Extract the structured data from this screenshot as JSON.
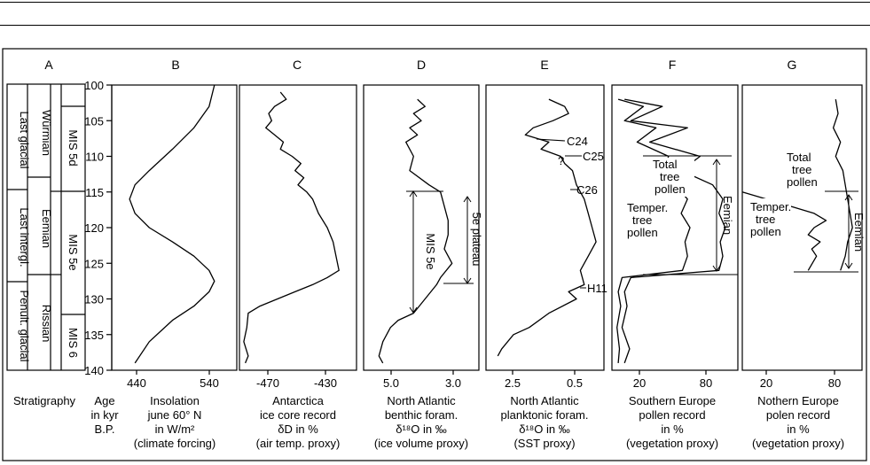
{
  "panel_letters": [
    "A",
    "B",
    "C",
    "D",
    "E",
    "F",
    "G"
  ],
  "strat": {
    "col1": [
      "Last glacial",
      "Last intergl.",
      "Penult. glacial"
    ],
    "col2": [
      "Würmian",
      "Eemian",
      "Rissian"
    ],
    "col3": [
      "MIS 5d",
      "MIS 5e",
      "MIS 6"
    ],
    "caption": "Stratigraphy"
  },
  "age_axis": {
    "ticks": [
      "100",
      "105",
      "110",
      "115",
      "120",
      "125",
      "130",
      "135",
      "140"
    ],
    "label": [
      "Age",
      "in kyr",
      "B.P."
    ]
  },
  "panel_b": {
    "xticks": [
      "440",
      "540"
    ],
    "caption": [
      "Insolation",
      "june 60° N",
      "in W/m²",
      "(climate forcing)"
    ]
  },
  "panel_c": {
    "xticks": [
      "-470",
      "-430"
    ],
    "caption": [
      "Antarctica",
      "ice core record",
      "δD in %",
      "(air temp. proxy)"
    ]
  },
  "panel_d": {
    "xticks": [
      "5.0",
      "3.0"
    ],
    "annotations": [
      "MIS 5e",
      "5e plateau"
    ],
    "caption": [
      "North Atlantic",
      "benthic foram.",
      "δ¹⁸O in ‰",
      "(ice volume proxy)"
    ]
  },
  "panel_e": {
    "xticks": [
      "2.5",
      "0.5"
    ],
    "annotations": [
      "C24",
      "C25",
      "C26",
      "H11",
      "?"
    ],
    "caption": [
      "North Atlantic",
      "planktonic foram.",
      "δ¹⁸O in ‰",
      "(SST proxy)"
    ]
  },
  "panel_f": {
    "xticks": [
      "20",
      "80"
    ],
    "annotations": [
      "Total",
      "tree",
      "pollen",
      "Temper.",
      "tree",
      "pollen",
      "Eemian"
    ],
    "caption": [
      "Southern Europe",
      "pollen record",
      "in %",
      "(vegetation proxy)"
    ]
  },
  "panel_g": {
    "xticks": [
      "20",
      "80"
    ],
    "annotations": [
      "Total",
      "tree",
      "pollen",
      "Temper.",
      "tree",
      "pollen",
      "Eemian"
    ],
    "caption": [
      "Nothern Europe",
      "polen record",
      "in %",
      "(vegetation proxy)"
    ]
  },
  "chart_data": [
    {
      "type": "line",
      "panel": "B",
      "xlabel": "Insolation june 60° N in W/m²",
      "ylabel": "Age in kyr B.P.",
      "xlim": [
        420,
        560
      ],
      "ylim": [
        100,
        140
      ],
      "series": [
        {
          "x": [
            535,
            529,
            512,
            488,
            462,
            446,
            440,
            446,
            462,
            488,
            512,
            529,
            535,
            529,
            512,
            488,
            462,
            446
          ],
          "y": [
            100,
            103,
            106,
            109,
            112,
            114,
            116,
            118,
            120,
            122,
            124,
            126,
            127.5,
            129,
            131,
            133,
            136,
            139
          ]
        }
      ]
    },
    {
      "type": "line",
      "panel": "C",
      "xlabel": "Antarctica ice core record δD in %",
      "ylabel": "Age in kyr B.P.",
      "xlim": [
        -490,
        -410
      ],
      "ylim": [
        100,
        140
      ],
      "series": [
        {
          "x": [
            -462,
            -458,
            -466,
            -470,
            -468,
            -472,
            -466,
            -460,
            -462,
            -454,
            -448,
            -452,
            -446,
            -450,
            -444,
            -440,
            -436,
            -430,
            -426,
            -424,
            -422,
            -430,
            -440,
            -452,
            -464,
            -476,
            -484,
            -485,
            -487,
            -484,
            -486
          ],
          "y": [
            101,
            102,
            103,
            104,
            105,
            106,
            107,
            108,
            109,
            110,
            111,
            112,
            113,
            114,
            115,
            116,
            118,
            120,
            122,
            124,
            126,
            127,
            128,
            129,
            130,
            131,
            132,
            134,
            136,
            138,
            139
          ]
        }
      ]
    },
    {
      "type": "line",
      "panel": "D",
      "xlabel": "North Atlantic benthic foram. δ18O in ‰",
      "ylabel": "Age in kyr B.P.",
      "xlim": [
        5.5,
        2.5
      ],
      "ylim": [
        100,
        140
      ],
      "series": [
        {
          "x": [
            4.1,
            3.9,
            4.2,
            4.0,
            4.3,
            4.1,
            4.4,
            4.2,
            4.3,
            3.8,
            3.5,
            3.4,
            3.3,
            3.3,
            3.4,
            3.2,
            3.5,
            3.6,
            3.9,
            4.2,
            4.6,
            4.8,
            5.0,
            5.1,
            5.0
          ],
          "y": [
            102,
            103,
            104,
            105,
            106,
            107,
            108,
            110,
            112,
            114,
            115,
            117,
            119,
            121,
            123,
            125,
            127,
            128,
            130,
            132,
            133,
            134,
            136,
            138,
            139
          ]
        }
      ]
    },
    {
      "type": "line",
      "panel": "E",
      "xlabel": "North Atlantic planktonic foram. δ18O in ‰",
      "ylabel": "Age in kyr B.P.",
      "xlim": [
        3.0,
        0.0
      ],
      "ylim": [
        100,
        140
      ],
      "series": [
        {
          "x": [
            1.4,
            1.0,
            0.9,
            1.3,
            1.8,
            2.0,
            1.4,
            1.6,
            1.1,
            1.0,
            0.8,
            0.7,
            0.5,
            0.4,
            0.3,
            0.2,
            0.4,
            0.6,
            0.5,
            0.9,
            0.7,
            1.4,
            1.9,
            2.3,
            2.6,
            2.7
          ],
          "y": [
            102,
            103,
            104,
            105,
            106,
            107,
            108,
            109,
            110,
            111,
            112,
            114,
            116,
            118,
            120,
            122,
            124,
            126,
            128,
            129,
            130,
            132,
            134,
            135,
            137,
            138
          ]
        }
      ]
    },
    {
      "type": "line",
      "panel": "F",
      "xlabel": "Southern Europe pollen record in %",
      "ylabel": "Age in kyr B.P.",
      "xlim": [
        0,
        100
      ],
      "ylim": [
        100,
        140
      ],
      "series": [
        {
          "name": "Total tree pollen",
          "x": [
            10,
            40,
            15,
            60,
            30,
            70,
            55,
            80,
            88,
            85,
            90,
            86,
            88,
            85,
            15,
            10,
            12,
            8,
            14,
            10
          ],
          "y": [
            102,
            103,
            105,
            106,
            108,
            110,
            112,
            114,
            116,
            118,
            120,
            122,
            124,
            126,
            127,
            129,
            131,
            134,
            137,
            139
          ]
        },
        {
          "name": "Temper. tree pollen",
          "x": [
            5,
            25,
            10,
            35,
            20,
            45,
            40,
            50,
            60,
            55,
            62,
            58,
            60,
            56,
            8,
            5,
            7,
            4,
            6,
            5
          ],
          "y": [
            102,
            103,
            105,
            106,
            108,
            110,
            112,
            114,
            116,
            118,
            120,
            122,
            124,
            126,
            127,
            129,
            131,
            134,
            137,
            139
          ]
        }
      ]
    },
    {
      "type": "line",
      "panel": "G",
      "xlabel": "Nothern Europe polen record in %",
      "ylabel": "Age in kyr B.P.",
      "xlim": [
        0,
        100
      ],
      "ylim": [
        100,
        140
      ],
      "series": [
        {
          "name": "Total tree pollen",
          "x": [
            78,
            80,
            76,
            82,
            78,
            84,
            86,
            88,
            90,
            92,
            88,
            86,
            84,
            82
          ],
          "y": [
            102,
            104,
            106,
            108,
            110,
            112,
            114,
            116,
            118,
            120,
            122,
            124,
            125,
            126
          ]
        },
        {
          "name": "Temper. tree pollen",
          "x": [
            0,
            20,
            40,
            60,
            70,
            60,
            55,
            65,
            58,
            62,
            55
          ],
          "y": [
            115,
            116,
            117,
            118,
            119,
            120,
            121,
            122,
            123,
            124,
            126
          ]
        }
      ]
    }
  ]
}
